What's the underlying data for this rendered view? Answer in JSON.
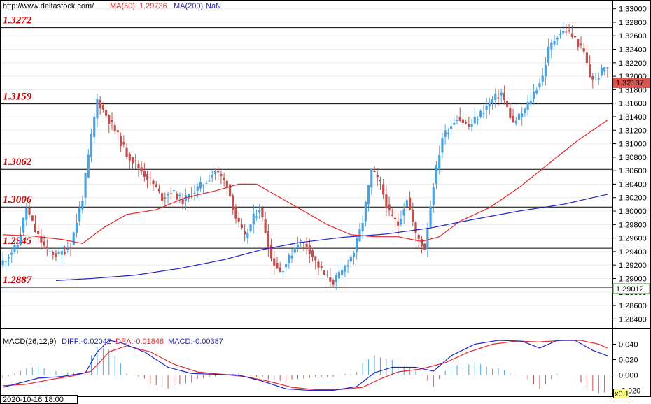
{
  "header": {
    "url": "http://www.deltastock.com/",
    "ma50_label": "MA(50)",
    "ma50_value": "1.29736",
    "ma200_label": "MA(200)",
    "ma200_value": "NaN"
  },
  "macd_header": {
    "name": "MACD(26,12,9)",
    "diff": "DIFF:-0.02042",
    "dea": "DEA:-0.01848",
    "macd": "MACD:-0.00387"
  },
  "footer": {
    "datetime": "2020-10-16 18:00",
    "zoom": "x0.1"
  },
  "colors": {
    "bull": "#4aa3df",
    "bear": "#c0504d",
    "ma50": "#e8262b",
    "ma200": "#2323c8",
    "level_text": "#d40000",
    "price_tag_bg": "#d9534f",
    "current_tag_border": "#2e8b2e"
  },
  "chart_data": {
    "type": "candlestick",
    "price_axis": {
      "ylim": [
        1.283,
        1.331
      ],
      "ticks": [
        "1.33000",
        "1.32800",
        "1.32600",
        "1.32400",
        "1.32200",
        "1.32000",
        "1.31800",
        "1.31600",
        "1.31400",
        "1.31200",
        "1.31000",
        "1.30800",
        "1.30600",
        "1.30400",
        "1.30200",
        "1.30000",
        "1.29800",
        "1.29600",
        "1.29400",
        "1.29200",
        "1.29000",
        "1.28800",
        "1.28600",
        "1.28400"
      ]
    },
    "current_price": "1.32137",
    "cursor_price": "1.29012",
    "levels": [
      {
        "value": 1.3272,
        "label": "1.3272"
      },
      {
        "value": 1.3159,
        "label": "1.3159"
      },
      {
        "value": 1.3062,
        "label": "1.3062"
      },
      {
        "value": 1.3006,
        "label": "1.3006"
      },
      {
        "value": 1.2945,
        "label": "1.2945"
      },
      {
        "value": 1.2887,
        "label": "1.2887"
      }
    ],
    "anchors": [
      [
        0,
        1.292
      ],
      [
        6,
        1.295
      ],
      [
        9,
        1.3005
      ],
      [
        12,
        1.297
      ],
      [
        16,
        1.294
      ],
      [
        20,
        1.2935
      ],
      [
        24,
        1.295
      ],
      [
        28,
        1.302
      ],
      [
        31,
        1.311
      ],
      [
        33,
        1.3165
      ],
      [
        35,
        1.315
      ],
      [
        39,
        1.312
      ],
      [
        43,
        1.3085
      ],
      [
        48,
        1.306
      ],
      [
        52,
        1.304
      ],
      [
        55,
        1.302
      ],
      [
        58,
        1.303
      ],
      [
        62,
        1.3015
      ],
      [
        66,
        1.303
      ],
      [
        70,
        1.3045
      ],
      [
        73,
        1.306
      ],
      [
        77,
        1.304
      ],
      [
        80,
        1.299
      ],
      [
        83,
        1.296
      ],
      [
        86,
        1.299
      ],
      [
        88,
        1.3005
      ],
      [
        90,
        1.297
      ],
      [
        92,
        1.293
      ],
      [
        95,
        1.291
      ],
      [
        98,
        1.293
      ],
      [
        101,
        1.2955
      ],
      [
        104,
        1.295
      ],
      [
        107,
        1.2925
      ],
      [
        110,
        1.2905
      ],
      [
        113,
        1.2895
      ],
      [
        116,
        1.291
      ],
      [
        120,
        1.294
      ],
      [
        123,
        1.2985
      ],
      [
        126,
        1.306
      ],
      [
        129,
        1.304
      ],
      [
        132,
        1.2995
      ],
      [
        135,
        1.298
      ],
      [
        138,
        1.302
      ],
      [
        141,
        1.2965
      ],
      [
        144,
        1.2945
      ],
      [
        147,
        1.304
      ],
      [
        150,
        1.311
      ],
      [
        155,
        1.314
      ],
      [
        159,
        1.3125
      ],
      [
        163,
        1.3145
      ],
      [
        167,
        1.3165
      ],
      [
        170,
        1.3175
      ],
      [
        174,
        1.313
      ],
      [
        178,
        1.315
      ],
      [
        181,
        1.3175
      ],
      [
        184,
        1.32
      ],
      [
        186,
        1.324
      ],
      [
        189,
        1.3262
      ],
      [
        192,
        1.3268
      ],
      [
        195,
        1.3255
      ],
      [
        198,
        1.3235
      ],
      [
        200,
        1.32
      ],
      [
        202,
        1.3195
      ],
      [
        205,
        1.3213
      ]
    ],
    "ma50": [
      [
        0,
        1.2965
      ],
      [
        10,
        1.2963
      ],
      [
        20,
        1.2958
      ],
      [
        27,
        1.2952
      ],
      [
        34,
        1.2975
      ],
      [
        42,
        1.2995
      ],
      [
        52,
        1.3002
      ],
      [
        62,
        1.302
      ],
      [
        72,
        1.303
      ],
      [
        80,
        1.304
      ],
      [
        86,
        1.304
      ],
      [
        92,
        1.3025
      ],
      [
        100,
        1.3005
      ],
      [
        110,
        1.298
      ],
      [
        118,
        1.2965
      ],
      [
        126,
        1.2962
      ],
      [
        134,
        1.2962
      ],
      [
        142,
        1.2955
      ],
      [
        148,
        1.2962
      ],
      [
        155,
        1.2985
      ],
      [
        165,
        1.3005
      ],
      [
        175,
        1.3035
      ],
      [
        185,
        1.307
      ],
      [
        195,
        1.3105
      ],
      [
        205,
        1.3135
      ]
    ],
    "ma200": [
      [
        18,
        1.2897
      ],
      [
        30,
        1.29
      ],
      [
        45,
        1.2905
      ],
      [
        60,
        1.2915
      ],
      [
        75,
        1.2928
      ],
      [
        88,
        1.2943
      ],
      [
        100,
        1.2953
      ],
      [
        115,
        1.2961
      ],
      [
        130,
        1.2966
      ],
      [
        145,
        1.2975
      ],
      [
        160,
        1.2988
      ],
      [
        175,
        1.3
      ],
      [
        190,
        1.301
      ],
      [
        205,
        1.3025
      ]
    ],
    "macd_axis": {
      "ylim": [
        -0.025,
        0.055
      ],
      "ticks": [
        "0.040",
        "0.020",
        "0.000",
        "-0.020"
      ]
    },
    "diff_anchors": [
      [
        0,
        -0.016
      ],
      [
        6,
        -0.01
      ],
      [
        12,
        -0.004
      ],
      [
        20,
        -0.002
      ],
      [
        28,
        0.003
      ],
      [
        32,
        0.03
      ],
      [
        36,
        0.045
      ],
      [
        40,
        0.042
      ],
      [
        48,
        0.03
      ],
      [
        56,
        0.01
      ],
      [
        64,
        0.002
      ],
      [
        72,
        0.001
      ],
      [
        80,
        0.0
      ],
      [
        88,
        -0.008
      ],
      [
        96,
        -0.018
      ],
      [
        104,
        -0.02
      ],
      [
        112,
        -0.02
      ],
      [
        120,
        -0.015
      ],
      [
        126,
        0.003
      ],
      [
        132,
        0.01
      ],
      [
        140,
        0.01
      ],
      [
        146,
        0.005
      ],
      [
        152,
        0.025
      ],
      [
        160,
        0.04
      ],
      [
        168,
        0.045
      ],
      [
        176,
        0.044
      ],
      [
        182,
        0.035
      ],
      [
        188,
        0.045
      ],
      [
        194,
        0.045
      ],
      [
        200,
        0.032
      ],
      [
        205,
        0.025
      ]
    ],
    "dea_anchors": [
      [
        0,
        -0.014
      ],
      [
        8,
        -0.012
      ],
      [
        16,
        -0.006
      ],
      [
        24,
        -0.001
      ],
      [
        30,
        0.005
      ],
      [
        36,
        0.03
      ],
      [
        42,
        0.038
      ],
      [
        50,
        0.03
      ],
      [
        58,
        0.014
      ],
      [
        66,
        0.004
      ],
      [
        74,
        0.001
      ],
      [
        82,
        -0.002
      ],
      [
        90,
        -0.008
      ],
      [
        98,
        -0.016
      ],
      [
        106,
        -0.019
      ],
      [
        114,
        -0.019
      ],
      [
        122,
        -0.016
      ],
      [
        128,
        -0.005
      ],
      [
        134,
        0.004
      ],
      [
        142,
        0.008
      ],
      [
        150,
        0.016
      ],
      [
        158,
        0.03
      ],
      [
        166,
        0.04
      ],
      [
        174,
        0.044
      ],
      [
        182,
        0.043
      ],
      [
        190,
        0.045
      ],
      [
        196,
        0.045
      ],
      [
        202,
        0.04
      ],
      [
        205,
        0.035
      ]
    ]
  }
}
